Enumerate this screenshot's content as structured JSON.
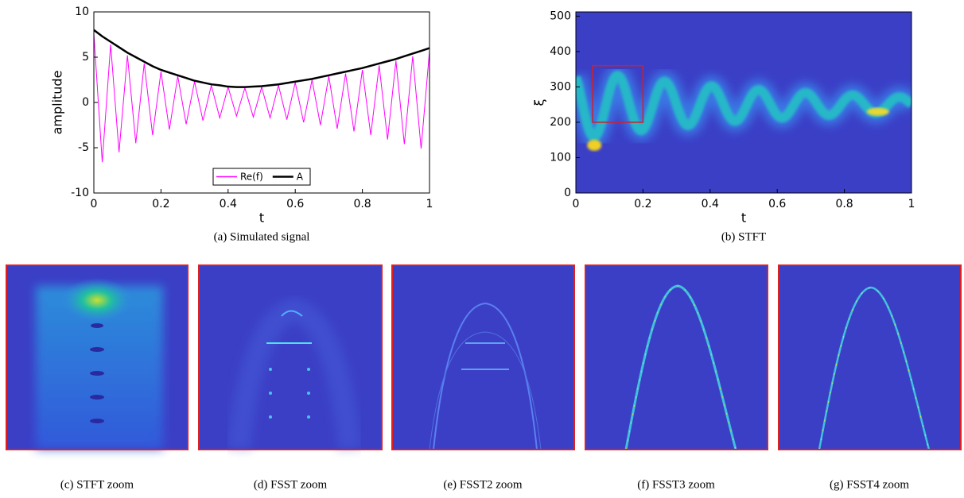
{
  "chart_data": [
    {
      "type": "line",
      "caption": "(a) Simulated signal",
      "xlabel": "t",
      "ylabel": "amplitude",
      "xlim": [
        0,
        1
      ],
      "ylim": [
        -10,
        10
      ],
      "xticks": [
        0,
        0.2,
        0.4,
        0.6,
        0.8,
        1
      ],
      "yticks": [
        -10,
        -5,
        0,
        5,
        10
      ],
      "legend": "lower center",
      "x": [
        0,
        0.025,
        0.05,
        0.075,
        0.1,
        0.125,
        0.15,
        0.175,
        0.2,
        0.225,
        0.25,
        0.275,
        0.3,
        0.325,
        0.35,
        0.375,
        0.4,
        0.425,
        0.45,
        0.475,
        0.5,
        0.525,
        0.55,
        0.575,
        0.6,
        0.625,
        0.65,
        0.675,
        0.7,
        0.725,
        0.75,
        0.775,
        0.8,
        0.825,
        0.85,
        0.875,
        0.9,
        0.925,
        0.95,
        0.975,
        1
      ],
      "series": [
        {
          "name": "Re(f)",
          "color": "#ff00ff",
          "values": [
            7.6,
            -6.6,
            6.4,
            -5.5,
            5.2,
            -4.5,
            4.3,
            -3.6,
            3.4,
            -3.0,
            2.9,
            -2.4,
            2.3,
            -2.0,
            1.9,
            -1.7,
            1.7,
            -1.5,
            1.6,
            -1.6,
            1.7,
            -1.7,
            1.9,
            -1.9,
            2.2,
            -2.2,
            2.5,
            -2.5,
            2.9,
            -2.9,
            3.2,
            -3.2,
            3.6,
            -3.6,
            4.1,
            -4.1,
            4.6,
            -4.6,
            5.1,
            -5.1,
            5.7
          ]
        },
        {
          "name": "A",
          "color": "#000000",
          "values": [
            8,
            7.3,
            6.7,
            6.1,
            5.5,
            5.0,
            4.5,
            4.0,
            3.6,
            3.3,
            3.0,
            2.7,
            2.4,
            2.2,
            2.0,
            1.9,
            1.75,
            1.7,
            1.7,
            1.75,
            1.8,
            1.9,
            2.0,
            2.15,
            2.3,
            2.45,
            2.6,
            2.8,
            3.0,
            3.2,
            3.4,
            3.6,
            3.8,
            4.05,
            4.3,
            4.55,
            4.8,
            5.1,
            5.4,
            5.7,
            6
          ]
        }
      ]
    },
    {
      "type": "heatmap",
      "caption": "(b) STFT",
      "xlabel": "t",
      "ylabel": "ξ",
      "xlim": [
        0,
        1
      ],
      "ylim": [
        0,
        512
      ],
      "xticks": [
        0,
        0.2,
        0.4,
        0.6,
        0.8,
        1
      ],
      "yticks": [
        0,
        100,
        200,
        300,
        400,
        500
      ],
      "zoom_box": {
        "x": [
          0.05,
          0.2
        ],
        "y": [
          200,
          360
        ],
        "color": "#d0202a"
      }
    }
  ],
  "zoom_panels": [
    {
      "caption": "(c) STFT zoom"
    },
    {
      "caption": "(d) FSST zoom"
    },
    {
      "caption": "(e) FSST2 zoom"
    },
    {
      "caption": "(f) FSST3 zoom"
    },
    {
      "caption": "(g) FSST4 zoom"
    }
  ]
}
